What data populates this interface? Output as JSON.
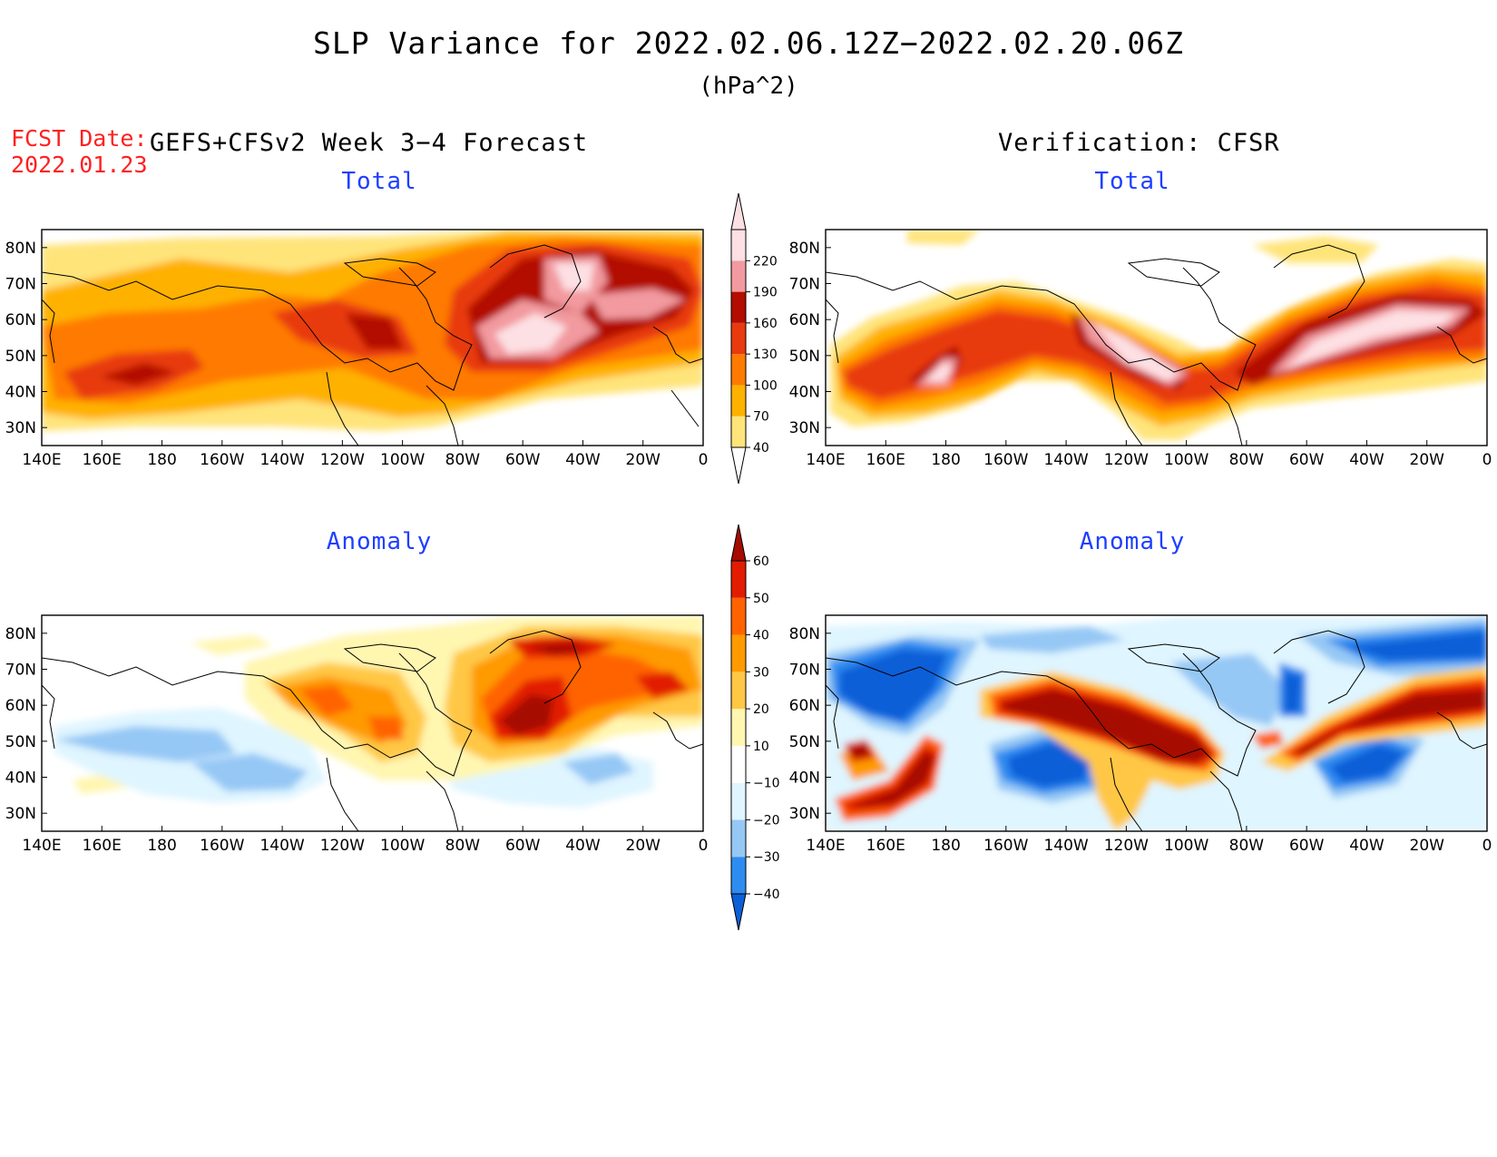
{
  "header": {
    "title": "SLP Variance for 2022.02.06.12Z−2022.02.20.06Z",
    "units": "(hPa^2)",
    "fcst_date_label": "FCST Date:",
    "fcst_date_value": "2022.01.23",
    "left_column_title": "GEFS+CFSv2 Week 3−4 Forecast",
    "right_column_title": "Verification: CFSR"
  },
  "panels": {
    "forecast_total": {
      "title": "Total"
    },
    "verification_total": {
      "title": "Total"
    },
    "forecast_anomaly": {
      "title": "Anomaly"
    },
    "verification_anomaly": {
      "title": "Anomaly"
    }
  },
  "map_axes": {
    "lon_ticks": [
      "140E",
      "160E",
      "180",
      "160W",
      "140W",
      "120W",
      "100W",
      "80W",
      "60W",
      "40W",
      "20W",
      "0"
    ],
    "lat_ticks": [
      "80N",
      "70N",
      "60N",
      "50N",
      "40N",
      "30N"
    ],
    "lon_range": [
      "140E",
      "0"
    ],
    "lat_range": [
      "25N",
      "85N"
    ]
  },
  "colorbars": {
    "total": {
      "levels": [
        "40",
        "70",
        "100",
        "130",
        "160",
        "190",
        "220"
      ],
      "colors": [
        "#ffe47a",
        "#ffb100",
        "#ff7a00",
        "#e83a0e",
        "#b30c00",
        "#f29a9f",
        "#fde0e4"
      ]
    },
    "anomaly": {
      "levels": [
        "−40",
        "−30",
        "−20",
        "−10",
        "10",
        "20",
        "30",
        "40",
        "50",
        "60"
      ],
      "colors": [
        "#0d5fd8",
        "#2e8cf0",
        "#96c8f5",
        "#dff5ff",
        "#ffffff",
        "#fff6b0",
        "#ffc745",
        "#ff9a00",
        "#ff6300",
        "#e21c00",
        "#a60a00"
      ]
    }
  },
  "colors": {
    "total_low": "#ffe47a",
    "total_high": "#fde0e4",
    "anomaly_positive": "#a60a00",
    "anomaly_negative": "#0d5fd8",
    "panel_title": "#1f3fff",
    "fcst_date": "#ff2020"
  }
}
